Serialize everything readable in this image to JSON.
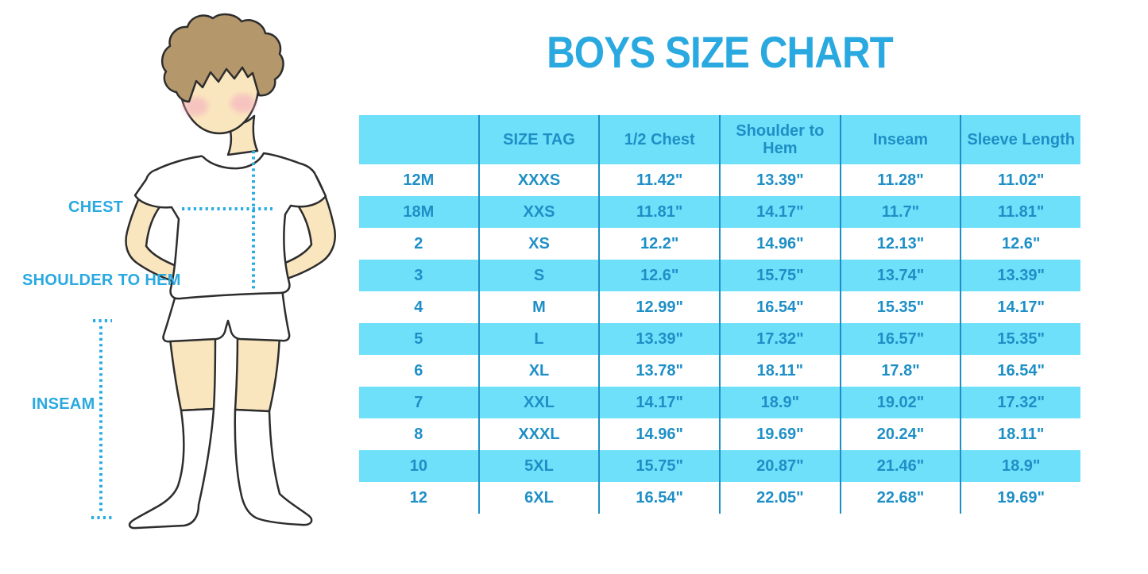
{
  "title": "BOYS SIZE CHART",
  "figure": {
    "description": "boy in white t-shirt, shorts and knee socks with dotted measurement guides",
    "labels": {
      "chest": "CHEST",
      "shoulder_to_hem": "SHOULDER TO HEM",
      "inseam": "INSEAM"
    }
  },
  "table": {
    "headers": [
      "",
      "SIZE TAG",
      "1/2 Chest",
      "Shoulder to Hem",
      "Inseam",
      "Sleeve Length"
    ],
    "rows": [
      [
        "12M",
        "XXXS",
        "11.42\"",
        "13.39\"",
        "11.28\"",
        "11.02\""
      ],
      [
        "18M",
        "XXS",
        "11.81\"",
        "14.17\"",
        "11.7\"",
        "11.81\""
      ],
      [
        "2",
        "XS",
        "12.2\"",
        "14.96\"",
        "12.13\"",
        "12.6\""
      ],
      [
        "3",
        "S",
        "12.6\"",
        "15.75\"",
        "13.74\"",
        "13.39\""
      ],
      [
        "4",
        "M",
        "12.99\"",
        "16.54\"",
        "15.35\"",
        "14.17\""
      ],
      [
        "5",
        "L",
        "13.39\"",
        "17.32\"",
        "16.57\"",
        "15.35\""
      ],
      [
        "6",
        "XL",
        "13.78\"",
        "18.11\"",
        "17.8\"",
        "16.54\""
      ],
      [
        "7",
        "XXL",
        "14.17\"",
        "18.9\"",
        "19.02\"",
        "17.32\""
      ],
      [
        "8",
        "XXXL",
        "14.96\"",
        "19.69\"",
        "20.24\"",
        "18.11\""
      ],
      [
        "10",
        "5XL",
        "15.75\"",
        "20.87\"",
        "21.46\"",
        "18.9\""
      ],
      [
        "12",
        "6XL",
        "16.54\"",
        "22.05\"",
        "22.68\"",
        "19.69\""
      ]
    ]
  },
  "colors": {
    "accent": "#29A9E0",
    "table_fill": "#6FE0FA",
    "table_text": "#1E8FC6",
    "divider": "#1E8FC6",
    "dotted_line": "#29ACE3",
    "skin": "#FAE6BE",
    "hair": "#B5976C",
    "blush": "#F4A9C1",
    "outline": "#2D2D2D"
  }
}
